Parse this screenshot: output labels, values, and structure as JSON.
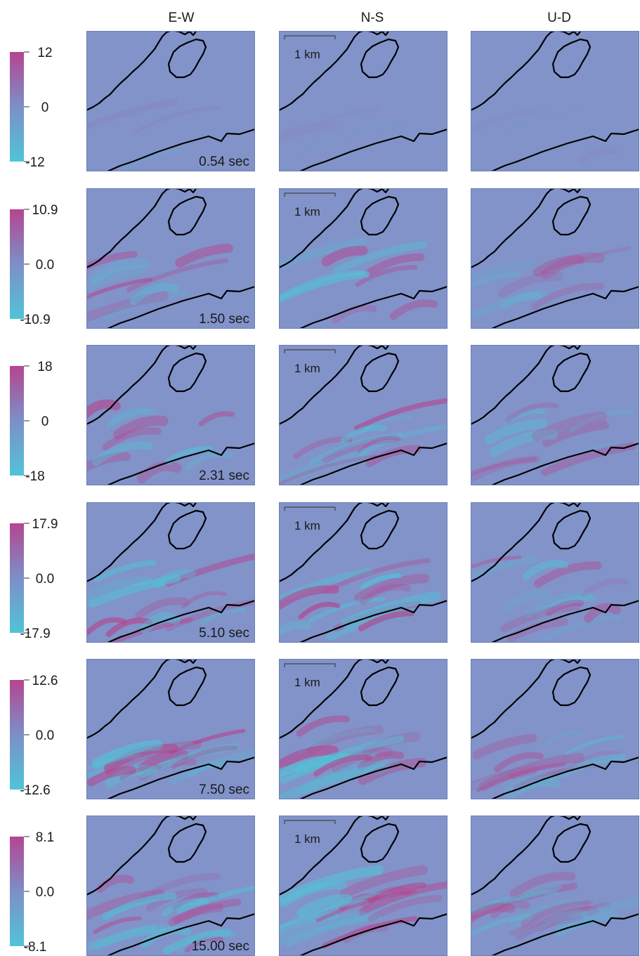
{
  "columns": [
    "E-W",
    "N-S",
    "U-D"
  ],
  "scale_bar_label": "1 km",
  "colors": {
    "positive": "#b5458f",
    "zero": "#7c8fc9",
    "negative": "#50c4d8",
    "background": "#8193c9",
    "outline": "#000000"
  },
  "rows": [
    {
      "time": "0.54 sec",
      "scale": {
        "max": "12",
        "zero": "0",
        "min": "-12"
      },
      "intensity": 0.15
    },
    {
      "time": "1.50 sec",
      "scale": {
        "max": "10.9",
        "zero": "0.0",
        "min": "-10.9"
      },
      "intensity": 0.75
    },
    {
      "time": "2.31 sec",
      "scale": {
        "max": "18",
        "zero": "0",
        "min": "-18"
      },
      "intensity": 0.85
    },
    {
      "time": "5.10 sec",
      "scale": {
        "max": "17.9",
        "zero": "0.0",
        "min": "-17.9"
      },
      "intensity": 0.9
    },
    {
      "time": "7.50 sec",
      "scale": {
        "max": "12.6",
        "zero": "0.0",
        "min": "-12.6"
      },
      "intensity": 0.85
    },
    {
      "time": "15.00 sec",
      "scale": {
        "max": "8.1",
        "zero": "0.0",
        "min": "-8.1"
      },
      "intensity": 0.8
    }
  ]
}
